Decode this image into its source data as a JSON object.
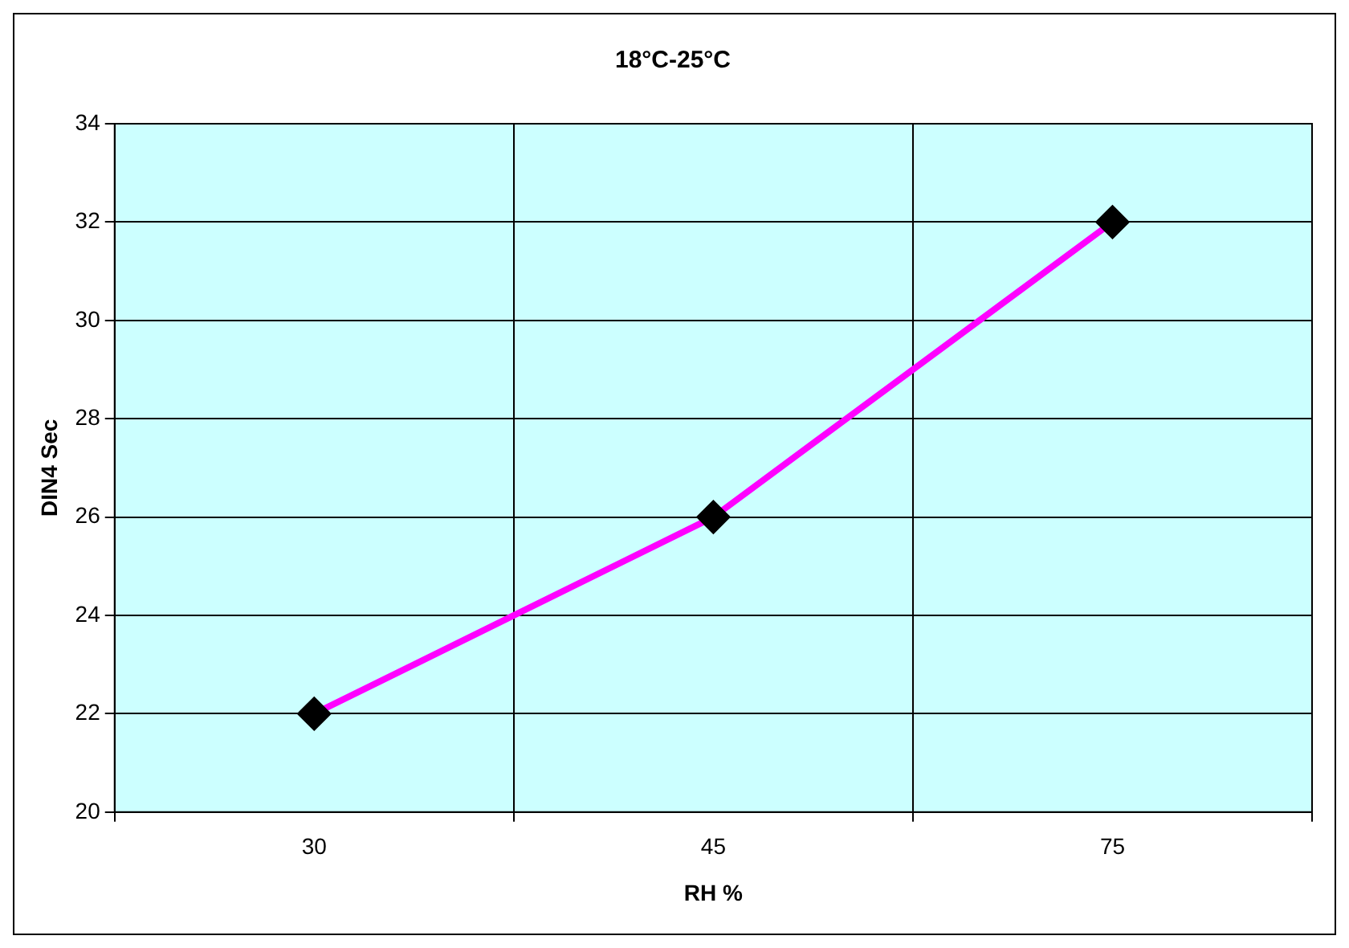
{
  "chart_data": {
    "type": "line",
    "title": "18°C-25°C",
    "xlabel": "RH %",
    "ylabel": "DIN4 Sec",
    "categories": [
      "30",
      "45",
      "75"
    ],
    "series": [
      {
        "color": "#ff00ff",
        "values": [
          22,
          26,
          32
        ]
      }
    ],
    "ylim": [
      20,
      34
    ],
    "yticks": [
      20,
      22,
      24,
      26,
      28,
      30,
      32,
      34
    ],
    "grid": true,
    "legend": false,
    "marker": "diamond",
    "line_style": "solid"
  }
}
